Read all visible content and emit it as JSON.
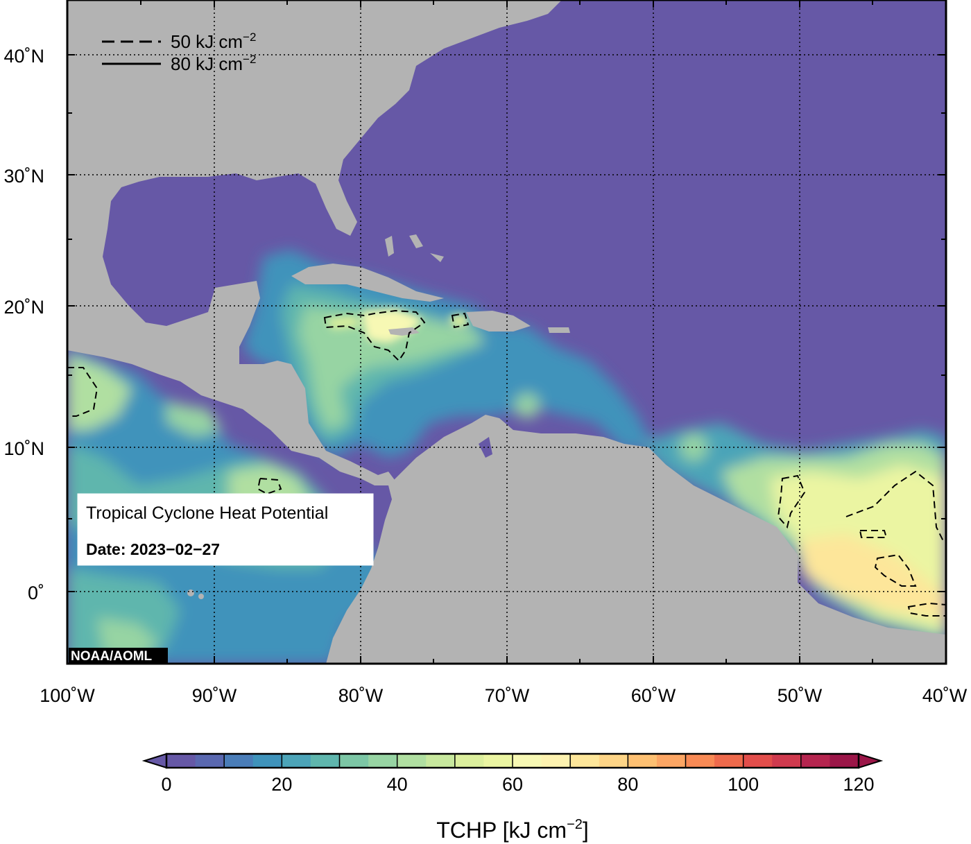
{
  "map": {
    "projection": "equirectangular",
    "extent": {
      "lon_min": -100,
      "lon_max": -40,
      "lat_min": -5,
      "lat_max": 44
    },
    "grid": "dotted",
    "land_color": "#b3b3b3",
    "ocean_low_color": "#6658a6",
    "field": "Tropical Cyclone Heat Potential (TCHP)",
    "lon_ticks": [
      {
        "value": -100,
        "label": "100˚W"
      },
      {
        "value": -90,
        "label": "90˚W"
      },
      {
        "value": -80,
        "label": "80˚W"
      },
      {
        "value": -70,
        "label": "70˚W"
      },
      {
        "value": -60,
        "label": "60˚W"
      },
      {
        "value": -50,
        "label": "50˚W"
      },
      {
        "value": -40,
        "label": "40˚W"
      }
    ],
    "lat_ticks": [
      {
        "value": 40,
        "label": "40˚N"
      },
      {
        "value": 30,
        "label": "30˚N"
      },
      {
        "value": 20,
        "label": "20˚N"
      },
      {
        "value": 10,
        "label": "10˚N"
      },
      {
        "value": 0,
        "label": "0˚"
      }
    ],
    "minor_lat_ticks": [
      -5,
      5,
      15,
      25,
      35
    ],
    "minor_lon_ticks": [
      -95,
      -85,
      -75,
      -65,
      -55,
      -45
    ],
    "credit": "NOAA/AOML"
  },
  "legend": {
    "dashed_label": "50 kJ cm",
    "solid_label": "80 kJ cm",
    "superscript": "−2"
  },
  "info_box": {
    "title": "Tropical Cyclone Heat Potential",
    "date": "Date: 2023−02−27"
  },
  "colorbar": {
    "min": 0,
    "max": 120,
    "step": 5,
    "tick_values": [
      0,
      20,
      40,
      60,
      80,
      100,
      120
    ],
    "title": "TCHP [kJ cm",
    "title_sup": "−2",
    "title_end": "]",
    "colors": [
      "#6658a6",
      "#5a68b0",
      "#4a7db8",
      "#3f93bb",
      "#4ca4b8",
      "#5fb6ad",
      "#7cc6a5",
      "#97d4a3",
      "#b0dfa1",
      "#c8e89e",
      "#dcef9d",
      "#ebf5a2",
      "#f7f8b4",
      "#fdf2b0",
      "#fde69a",
      "#fed587",
      "#fdc072",
      "#fca664",
      "#f88a55",
      "#ee6a4c",
      "#e24e4b",
      "#cf3a4e",
      "#b5254f",
      "#9b1648"
    ]
  }
}
